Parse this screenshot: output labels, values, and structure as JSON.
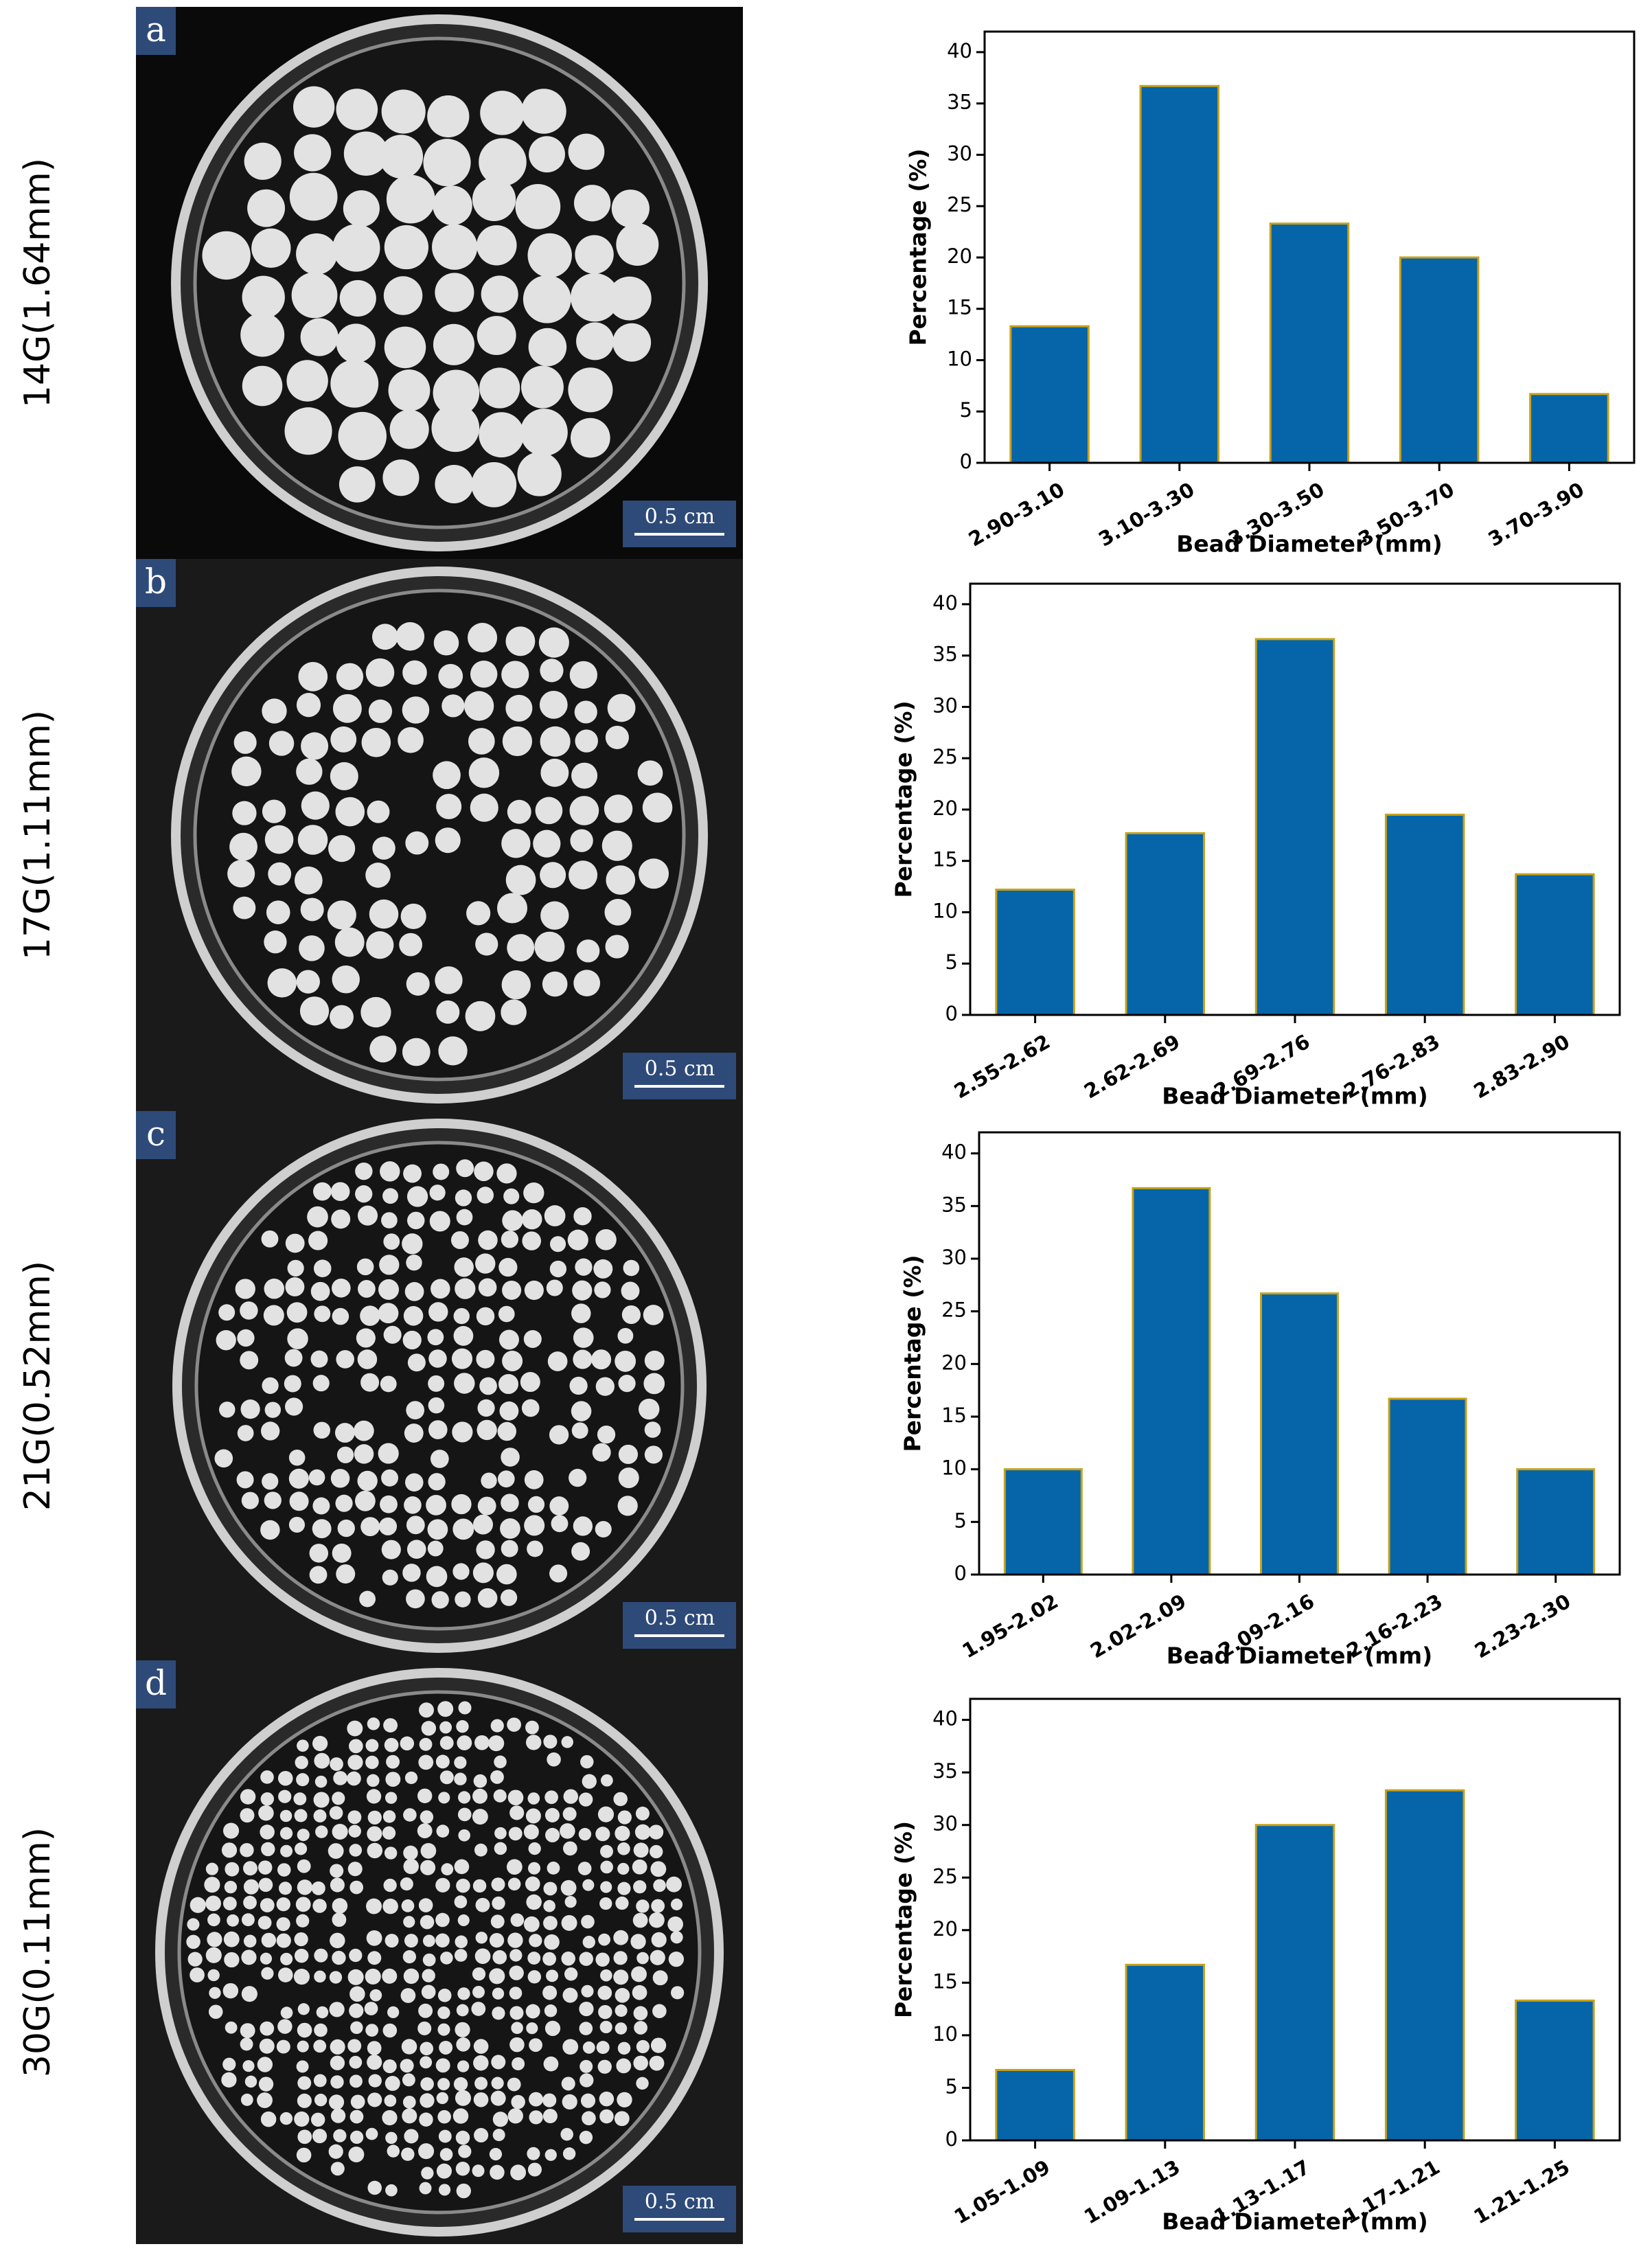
{
  "panels": [
    {
      "letter": "a",
      "sample": "14G(1.64mm)",
      "scale_bar": "0.5 cm"
    },
    {
      "letter": "b",
      "sample": "17G(1.11mm)",
      "scale_bar": "0.5 cm"
    },
    {
      "letter": "c",
      "sample": "21G(0.52mm)",
      "scale_bar": "0.5 cm"
    },
    {
      "letter": "d",
      "sample": "30G(0.11mm)",
      "scale_bar": "0.5 cm"
    }
  ],
  "chart_data": [
    {
      "type": "bar",
      "xlabel": "Bead Diameter (mm)",
      "ylabel": "Percentage (%)",
      "categories": [
        "2.90-3.10",
        "3.10-3.30",
        "3.30-3.50",
        "3.50-3.70",
        "3.70-3.90"
      ],
      "values": [
        13.3,
        36.7,
        23.3,
        20,
        6.7
      ],
      "color": "#0565a8",
      "edgecolor": "#c9a21a",
      "ylim": [
        0,
        42
      ],
      "yticks": [
        0,
        5,
        10,
        15,
        20,
        25,
        30,
        35,
        40
      ]
    },
    {
      "type": "bar",
      "xlabel": "Bead Diameter (mm)",
      "ylabel": "Percentage (%)",
      "categories": [
        "2.55-2.62",
        "2.62-2.69",
        "2.69-2.76",
        "2.76-2.83",
        "2.83-2.90"
      ],
      "values": [
        12.2,
        17.7,
        36.6,
        19.5,
        13.7
      ],
      "color": "#0565a8",
      "edgecolor": "#c9a21a",
      "ylim": [
        0,
        42
      ],
      "yticks": [
        0,
        5,
        10,
        15,
        20,
        25,
        30,
        35,
        40
      ]
    },
    {
      "type": "bar",
      "xlabel": "Bead Diameter (mm)",
      "ylabel": "Percentage (%)",
      "categories": [
        "1.95-2.02",
        "2.02-2.09",
        "2.09-2.16",
        "2.16-2.23",
        "2.23-2.30"
      ],
      "values": [
        10,
        36.7,
        26.7,
        16.7,
        10
      ],
      "color": "#0565a8",
      "edgecolor": "#c9a21a",
      "ylim": [
        0,
        42
      ],
      "yticks": [
        0,
        5,
        10,
        15,
        20,
        25,
        30,
        35,
        40
      ]
    },
    {
      "type": "bar",
      "xlabel": "Bead Diameter (mm)",
      "ylabel": "Percentage (%)",
      "categories": [
        "1.05-1.09",
        "1.09-1.13",
        "1.13-1.17",
        "1.17-1.21",
        "1.21-1.25"
      ],
      "values": [
        6.7,
        16.7,
        30,
        33.3,
        13.3
      ],
      "color": "#0565a8",
      "edgecolor": "#c9a21a",
      "ylim": [
        0,
        42
      ],
      "yticks": [
        0,
        5,
        10,
        15,
        20,
        25,
        30,
        35,
        40
      ]
    }
  ]
}
